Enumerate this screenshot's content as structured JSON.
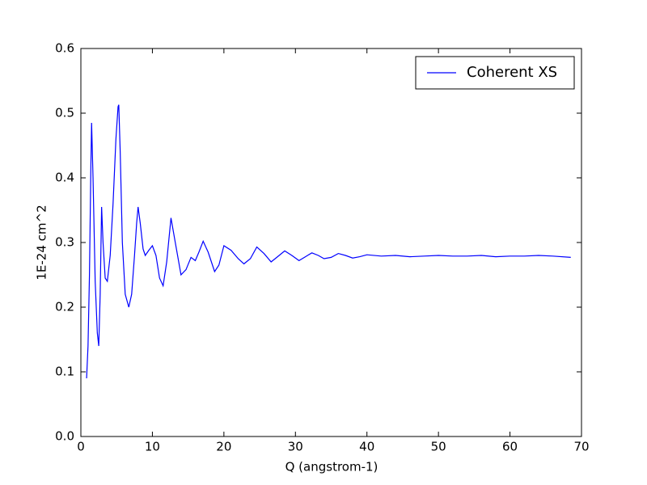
{
  "chart_data": {
    "type": "line",
    "xlabel": "Q (angstrom-1)",
    "ylabel": "1E-24 cm^2",
    "xlim": [
      0,
      70
    ],
    "ylim": [
      0,
      0.6
    ],
    "xticks": [
      0,
      10,
      20,
      30,
      40,
      50,
      60,
      70
    ],
    "yticks": [
      {
        "value": 0,
        "label": "0.0"
      },
      0.1,
      0.2,
      0.3,
      0.4,
      0.5,
      0.6
    ],
    "legend": "upper right",
    "x": [
      0.8,
      1.0,
      1.2,
      1.4,
      1.5,
      1.7,
      2.0,
      2.3,
      2.5,
      2.7,
      2.9,
      3.1,
      3.4,
      3.7,
      4.1,
      4.5,
      4.9,
      5.2,
      5.3,
      5.5,
      5.8,
      6.2,
      6.7,
      7.1,
      7.5,
      7.8,
      8.0,
      8.3,
      8.7,
      9.0,
      9.5,
      10.0,
      10.5,
      11.0,
      11.5,
      12.0,
      12.6,
      13.2,
      14.0,
      14.7,
      15.4,
      16.0,
      16.5,
      17.1,
      17.8,
      18.7,
      19.3,
      20.0,
      21.0,
      22.0,
      22.8,
      23.7,
      24.6,
      25.6,
      26.6,
      27.5,
      28.5,
      29.5,
      30.5,
      31.4,
      32.3,
      33.2,
      34.0,
      35.0,
      36.0,
      37.0,
      38.0,
      39.0,
      40.0,
      42,
      44,
      46,
      48,
      50,
      52,
      54,
      56,
      58,
      60,
      62,
      64,
      66,
      68.5
    ],
    "series": [
      {
        "name": "Coherent XS",
        "color": "#0000ff",
        "values": [
          0.09,
          0.14,
          0.25,
          0.42,
          0.485,
          0.4,
          0.24,
          0.16,
          0.14,
          0.22,
          0.355,
          0.3,
          0.245,
          0.24,
          0.28,
          0.36,
          0.46,
          0.51,
          0.513,
          0.44,
          0.3,
          0.22,
          0.2,
          0.22,
          0.28,
          0.33,
          0.355,
          0.33,
          0.29,
          0.28,
          0.288,
          0.295,
          0.28,
          0.245,
          0.233,
          0.27,
          0.338,
          0.3,
          0.25,
          0.258,
          0.277,
          0.272,
          0.285,
          0.302,
          0.285,
          0.255,
          0.265,
          0.295,
          0.288,
          0.275,
          0.267,
          0.275,
          0.293,
          0.283,
          0.27,
          0.278,
          0.287,
          0.28,
          0.272,
          0.278,
          0.284,
          0.28,
          0.275,
          0.277,
          0.283,
          0.28,
          0.276,
          0.278,
          0.281,
          0.279,
          0.28,
          0.278,
          0.279,
          0.28,
          0.279,
          0.279,
          0.28,
          0.278,
          0.279,
          0.279,
          0.28,
          0.279,
          0.277
        ]
      }
    ]
  }
}
